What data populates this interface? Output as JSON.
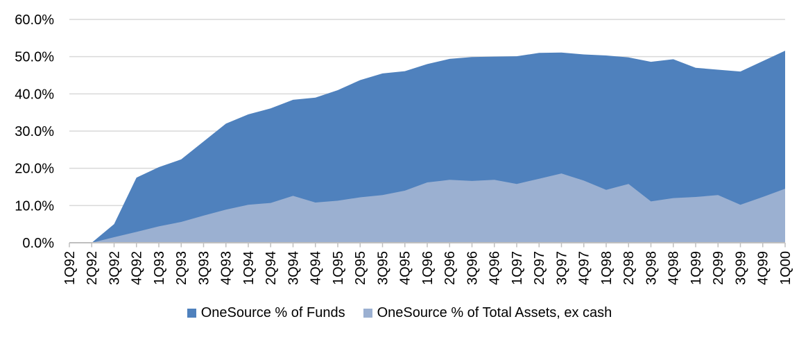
{
  "chart_data": {
    "type": "area",
    "stacked": false,
    "title": "",
    "xlabel": "",
    "ylabel": "",
    "ylim": [
      0,
      60
    ],
    "ytick_step": 10,
    "ytick_labels": [
      "0.0%",
      "10.0%",
      "20.0%",
      "30.0%",
      "40.0%",
      "50.0%",
      "60.0%"
    ],
    "grid": true,
    "legend_position": "bottom",
    "categories": [
      "1Q92",
      "2Q92",
      "3Q92",
      "4Q92",
      "1Q93",
      "2Q93",
      "3Q93",
      "4Q93",
      "1Q94",
      "2Q94",
      "3Q94",
      "4Q94",
      "1Q95",
      "2Q95",
      "3Q95",
      "4Q95",
      "1Q96",
      "2Q96",
      "3Q96",
      "4Q96",
      "1Q97",
      "2Q97",
      "3Q97",
      "4Q97",
      "1Q98",
      "2Q98",
      "3Q98",
      "4Q98",
      "1Q99",
      "2Q99",
      "3Q99",
      "4Q99",
      "1Q00"
    ],
    "series": [
      {
        "name": "OneSource % of Funds",
        "color": "#4F81BD",
        "values": [
          0.0,
          0.0,
          5.0,
          17.5,
          20.3,
          22.4,
          27.2,
          32.0,
          34.5,
          36.1,
          38.4,
          39.0,
          41.0,
          43.7,
          45.5,
          46.1,
          48.0,
          49.4,
          49.9,
          50.0,
          50.1,
          51.0,
          51.1,
          50.6,
          50.3,
          49.8,
          48.6,
          49.3,
          47.0,
          46.5,
          46.0,
          48.8,
          51.6
        ]
      },
      {
        "name": "OneSource % of Total Assets, ex cash",
        "color": "#9BB0D1",
        "values": [
          0.0,
          0.0,
          1.5,
          2.9,
          4.4,
          5.6,
          7.3,
          8.9,
          10.2,
          10.7,
          12.6,
          10.8,
          11.3,
          12.2,
          12.8,
          14.0,
          16.2,
          16.9,
          16.6,
          16.9,
          15.8,
          17.2,
          18.6,
          16.7,
          14.2,
          15.8,
          11.1,
          12.0,
          12.3,
          12.8,
          10.2,
          12.3,
          14.5
        ]
      }
    ],
    "colors": {
      "gridline": "#D9D9D9",
      "axis": "#BFBFBF",
      "tick_label": "#000000"
    }
  }
}
